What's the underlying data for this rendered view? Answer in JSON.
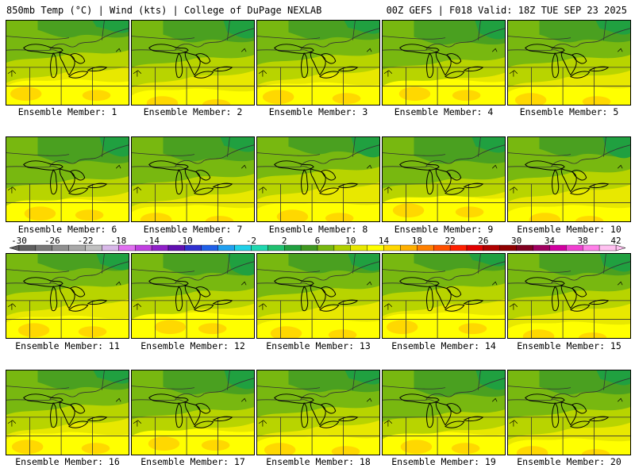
{
  "header": {
    "left": "850mb Temp (°C) | Wind (kts) | College of DuPage NEXLAB",
    "right": "00Z GEFS | F018 Valid: 18Z TUE SEP 23 2025"
  },
  "member_prefix": "Ensemble Member: ",
  "members": [
    "1",
    "2",
    "3",
    "4",
    "5",
    "6",
    "7",
    "8",
    "9",
    "10",
    "11",
    "12",
    "13",
    "14",
    "15",
    "16",
    "17",
    "18",
    "19",
    "20"
  ],
  "colorbar": {
    "labels": [
      "-30",
      "-26",
      "-22",
      "-18",
      "-14",
      "-10",
      "-6",
      "-2",
      "2",
      "6",
      "10",
      "14",
      "18",
      "22",
      "26",
      "30",
      "34",
      "38",
      "42"
    ],
    "colors": [
      "#606060",
      "#787878",
      "#909090",
      "#a8a8a8",
      "#c0c0c0",
      "#d8b8e8",
      "#e070f0",
      "#c040e0",
      "#9020c8",
      "#6010b0",
      "#3030d0",
      "#2060e8",
      "#20a0f0",
      "#20d0e8",
      "#20d8b0",
      "#20c070",
      "#20a040",
      "#409820",
      "#78b810",
      "#b0d000",
      "#e8e800",
      "#ffff00",
      "#ffd800",
      "#ffb000",
      "#ff8000",
      "#ff5000",
      "#ff2000",
      "#e00000",
      "#b00000",
      "#900000",
      "#800020",
      "#a00060",
      "#d000a0",
      "#f040d0",
      "#ff80e8",
      "#ffc0f0"
    ]
  }
}
